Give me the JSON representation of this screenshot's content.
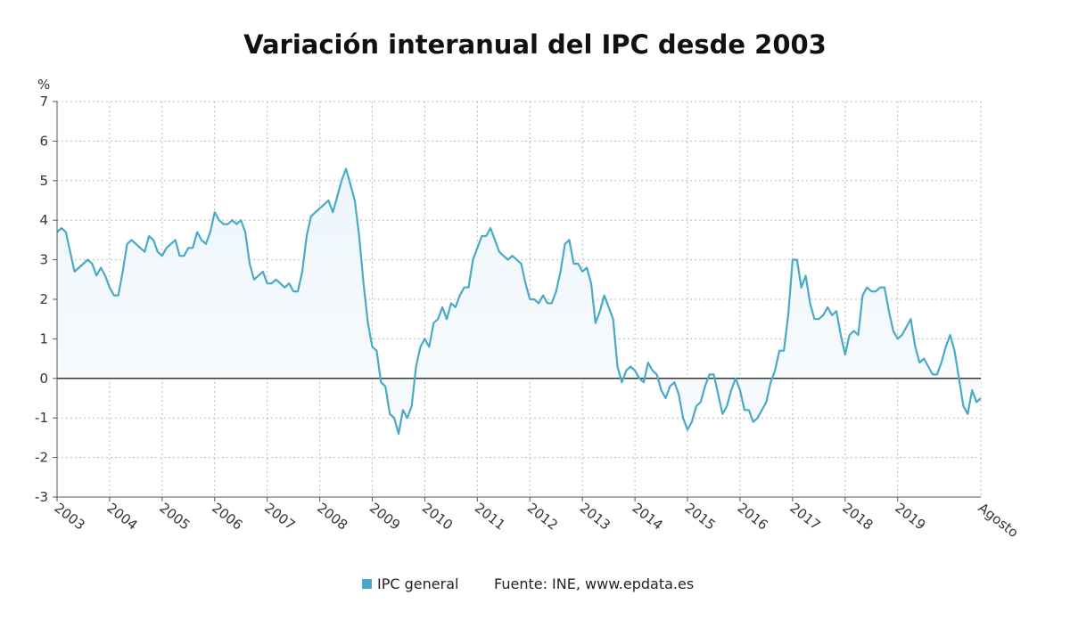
{
  "chart_data": {
    "type": "area",
    "title": "Variación interanual del IPC desde 2003",
    "ylabel": "%",
    "ylim": [
      -3,
      7
    ],
    "yticks": [
      7,
      6,
      5,
      4,
      3,
      2,
      1,
      0,
      -1,
      -2,
      -3
    ],
    "xticks": [
      "2003",
      "2004",
      "2005",
      "2006",
      "2007",
      "2008",
      "2009",
      "2010",
      "2011",
      "2012",
      "2013",
      "2014",
      "2015",
      "2016",
      "2017",
      "2018",
      "2019"
    ],
    "x_end_label": "Agosto",
    "grid": true,
    "legend_position": "bottom",
    "source": "Fuente: INE, www.epdata.es",
    "series": [
      {
        "name": "IPC general",
        "color": "#4aaac6",
        "frequency": "monthly",
        "values_by_year": {
          "2003": [
            3.7,
            3.8,
            3.7,
            3.2,
            2.7,
            2.8,
            2.9,
            3.0,
            2.9,
            2.6,
            2.8,
            2.6
          ],
          "2004": [
            2.3,
            2.1,
            2.1,
            2.7,
            3.4,
            3.5,
            3.4,
            3.3,
            3.2,
            3.6,
            3.5,
            3.2
          ],
          "2005": [
            3.1,
            3.3,
            3.4,
            3.5,
            3.1,
            3.1,
            3.3,
            3.3,
            3.7,
            3.5,
            3.4,
            3.7
          ],
          "2006": [
            4.2,
            4.0,
            3.9,
            3.9,
            4.0,
            3.9,
            4.0,
            3.7,
            2.9,
            2.5,
            2.6,
            2.7
          ],
          "2007": [
            2.4,
            2.4,
            2.5,
            2.4,
            2.3,
            2.4,
            2.2,
            2.2,
            2.7,
            3.6,
            4.1,
            4.2
          ],
          "2008": [
            4.3,
            4.4,
            4.5,
            4.2,
            4.6,
            5.0,
            5.3,
            4.9,
            4.5,
            3.6,
            2.4,
            1.4
          ],
          "2009": [
            0.8,
            0.7,
            -0.1,
            -0.2,
            -0.9,
            -1.0,
            -1.4,
            -0.8,
            -1.0,
            -0.7,
            0.3,
            0.8
          ],
          "2010": [
            1.0,
            0.8,
            1.4,
            1.5,
            1.8,
            1.5,
            1.9,
            1.8,
            2.1,
            2.3,
            2.3,
            3.0
          ],
          "2011": [
            3.3,
            3.6,
            3.6,
            3.8,
            3.5,
            3.2,
            3.1,
            3.0,
            3.1,
            3.0,
            2.9,
            2.4
          ],
          "2012": [
            2.0,
            2.0,
            1.9,
            2.1,
            1.9,
            1.9,
            2.2,
            2.7,
            3.4,
            3.5,
            2.9,
            2.9
          ],
          "2013": [
            2.7,
            2.8,
            2.4,
            1.4,
            1.7,
            2.1,
            1.8,
            1.5,
            0.3,
            -0.1,
            0.2,
            0.3
          ],
          "2014": [
            0.2,
            0.0,
            -0.1,
            0.4,
            0.2,
            0.1,
            -0.3,
            -0.5,
            -0.2,
            -0.1,
            -0.4,
            -1.0
          ],
          "2015": [
            -1.3,
            -1.1,
            -0.7,
            -0.6,
            -0.2,
            0.1,
            0.1,
            -0.4,
            -0.9,
            -0.7,
            -0.3,
            0.0
          ],
          "2016": [
            -0.3,
            -0.8,
            -0.8,
            -1.1,
            -1.0,
            -0.8,
            -0.6,
            -0.1,
            0.2,
            0.7,
            0.7,
            1.6
          ],
          "2017": [
            3.0,
            3.0,
            2.3,
            2.6,
            1.9,
            1.5,
            1.5,
            1.6,
            1.8,
            1.6,
            1.7,
            1.1
          ],
          "2018": [
            0.6,
            1.1,
            1.2,
            1.1,
            2.1,
            2.3,
            2.2,
            2.2,
            2.3,
            2.3,
            1.7,
            1.2
          ],
          "2019": [
            1.0,
            1.1,
            1.3,
            1.5,
            0.8,
            0.4,
            0.5,
            0.3,
            0.1,
            0.1,
            0.4,
            0.8
          ],
          "2020": [
            1.1,
            0.7,
            0.0,
            -0.7,
            -0.9,
            -0.3,
            -0.6,
            -0.5
          ]
        }
      }
    ]
  }
}
